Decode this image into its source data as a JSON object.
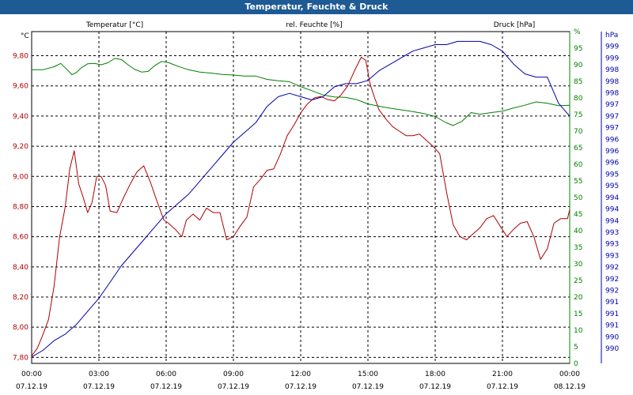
{
  "title": "Temperatur, Feuchte & Druck",
  "colors": {
    "temperature": "#b00000",
    "humidity": "#008000",
    "pressure": "#0000b0",
    "grid": "#000000",
    "titlebar": "#1e5a94"
  },
  "chart_data": {
    "type": "line",
    "grid": true,
    "x_ticks": [
      {
        "time": "00:00",
        "date": "07.12.19"
      },
      {
        "time": "03:00",
        "date": "07.12.19"
      },
      {
        "time": "06:00",
        "date": "07.12.19"
      },
      {
        "time": "09:00",
        "date": "07.12.19"
      },
      {
        "time": "12:00",
        "date": "07.12.19"
      },
      {
        "time": "15:00",
        "date": "07.12.19"
      },
      {
        "time": "18:00",
        "date": "07.12.19"
      },
      {
        "time": "21:00",
        "date": "07.12.19"
      },
      {
        "time": "00:00",
        "date": "08.12.19"
      }
    ],
    "axes": {
      "temperature": {
        "label": "Temperatur [°C]",
        "unit": "°C",
        "ylim": [
          7.76,
          9.96
        ],
        "ticks": [
          "7,80",
          "8,00",
          "8,20",
          "8,40",
          "8,60",
          "8,80",
          "9,00",
          "9,20",
          "9,40",
          "9,60",
          "9,80"
        ]
      },
      "humidity": {
        "label": "rel. Feuchte [%]",
        "unit": "%",
        "ylim": [
          0,
          100
        ],
        "ticks": [
          "0",
          "5",
          "10",
          "15",
          "20",
          "25",
          "30",
          "35",
          "40",
          "45",
          "50",
          "55",
          "60",
          "65",
          "70",
          "75",
          "80",
          "85",
          "90",
          "95",
          "%"
        ]
      },
      "pressure": {
        "label": "Druck [hPa]",
        "unit": "hPa",
        "ylim": [
          989.4,
          999.6
        ],
        "ticks": [
          "990",
          "990",
          "991",
          "991",
          "991",
          "992",
          "992",
          "992",
          "993",
          "993",
          "993",
          "994",
          "994",
          "994",
          "995",
          "995",
          "996",
          "996",
          "996",
          "997",
          "997",
          "997",
          "998",
          "998",
          "998",
          "999",
          "999",
          "hPa"
        ]
      }
    },
    "series": [
      {
        "name": "Temperatur [°C]",
        "axis": "temperature",
        "x": [
          0,
          0.25,
          0.5,
          0.75,
          1,
          1.25,
          1.5,
          1.7,
          1.9,
          2.1,
          2.3,
          2.5,
          2.7,
          2.9,
          3.1,
          3.3,
          3.5,
          3.8,
          4.1,
          4.4,
          4.7,
          5.0,
          5.3,
          5.6,
          5.9,
          6.1,
          6.4,
          6.7,
          6.9,
          7.2,
          7.5,
          7.8,
          8.1,
          8.4,
          8.7,
          9.0,
          9.3,
          9.6,
          9.9,
          10.2,
          10.5,
          10.8,
          11.1,
          11.4,
          11.7,
          12.0,
          12.3,
          12.6,
          12.9,
          13.2,
          13.5,
          13.8,
          14.1,
          14.4,
          14.7,
          14.9,
          15.1,
          15.3,
          15.5,
          15.8,
          16.1,
          16.4,
          16.7,
          17.0,
          17.3,
          17.6,
          17.9,
          18.2,
          18.5,
          18.8,
          19.1,
          19.4,
          19.7,
          20.0,
          20.3,
          20.6,
          20.9,
          21.2,
          21.5,
          21.8,
          22.1,
          22.4,
          22.7,
          23.0,
          23.3,
          23.6,
          23.9,
          24.0
        ],
        "values": [
          7.81,
          7.86,
          7.95,
          8.05,
          8.27,
          8.6,
          8.8,
          9.05,
          9.17,
          8.95,
          8.86,
          8.76,
          8.83,
          9.0,
          9.0,
          8.94,
          8.77,
          8.76,
          8.86,
          8.95,
          9.03,
          9.07,
          8.96,
          8.83,
          8.71,
          8.69,
          8.65,
          8.6,
          8.71,
          8.75,
          8.71,
          8.79,
          8.76,
          8.76,
          8.58,
          8.6,
          8.67,
          8.73,
          8.93,
          8.98,
          9.04,
          9.05,
          9.15,
          9.27,
          9.34,
          9.42,
          9.48,
          9.52,
          9.53,
          9.51,
          9.5,
          9.54,
          9.6,
          9.7,
          9.79,
          9.77,
          9.61,
          9.52,
          9.44,
          9.38,
          9.33,
          9.3,
          9.27,
          9.27,
          9.28,
          9.24,
          9.2,
          9.15,
          8.9,
          8.68,
          8.6,
          8.58,
          8.62,
          8.66,
          8.72,
          8.74,
          8.67,
          8.6,
          8.65,
          8.69,
          8.7,
          8.6,
          8.45,
          8.52,
          8.69,
          8.72,
          8.72,
          8.78
        ]
      },
      {
        "name": "rel. Feuchte [%]",
        "axis": "humidity",
        "x": [
          0,
          0.5,
          1,
          1.3,
          1.6,
          1.8,
          2.0,
          2.2,
          2.5,
          2.8,
          3.1,
          3.4,
          3.7,
          4.0,
          4.3,
          4.6,
          4.9,
          5.2,
          5.5,
          5.8,
          6.1,
          6.5,
          7.0,
          7.5,
          8.0,
          8.5,
          9.0,
          9.5,
          10.0,
          10.5,
          11.0,
          11.5,
          12.0,
          12.5,
          13.0,
          13.5,
          14.0,
          14.5,
          15.0,
          15.5,
          16.0,
          16.5,
          17.0,
          17.5,
          18.0,
          18.5,
          18.8,
          19.2,
          19.6,
          20.0,
          20.5,
          21.0,
          21.5,
          22.0,
          22.5,
          23.0,
          23.5,
          24.0
        ],
        "values": [
          88.5,
          88.5,
          89.4,
          90.4,
          88.4,
          87.0,
          87.7,
          89.0,
          90.3,
          90.4,
          90.0,
          90.6,
          91.9,
          91.6,
          90.0,
          88.6,
          87.8,
          88.0,
          89.8,
          91.0,
          90.7,
          89.6,
          88.5,
          87.8,
          87.5,
          87.1,
          86.9,
          86.6,
          86.6,
          85.6,
          85.2,
          84.9,
          83.4,
          82.2,
          80.9,
          80.3,
          80.2,
          79.5,
          78.2,
          77.5,
          76.9,
          76.4,
          75.9,
          75.3,
          74.4,
          72.5,
          71.7,
          73.0,
          75.6,
          75.1,
          75.6,
          76.0,
          77.0,
          77.8,
          78.8,
          78.4,
          77.7,
          77.8
        ]
      },
      {
        "name": "Druck [hPa]",
        "axis": "pressure",
        "x": [
          0,
          0.5,
          1,
          1.5,
          2,
          2.5,
          3,
          3.5,
          4,
          4.5,
          5,
          5.5,
          6,
          6.5,
          7,
          7.5,
          8,
          8.5,
          9,
          9.5,
          10,
          10.5,
          11,
          11.5,
          12,
          12.5,
          13,
          13.5,
          14,
          14.5,
          15,
          15.5,
          16,
          16.5,
          17,
          17.5,
          18,
          18.5,
          19,
          19.5,
          20,
          20.5,
          21,
          21.5,
          22,
          22.5,
          23,
          23.5,
          24
        ],
        "values": [
          989.6,
          989.8,
          990.1,
          990.3,
          990.6,
          991.0,
          991.4,
          991.9,
          992.4,
          992.8,
          993.2,
          993.6,
          994.0,
          994.3,
          994.6,
          995.0,
          995.4,
          995.8,
          996.2,
          996.5,
          996.8,
          997.3,
          997.6,
          997.7,
          997.6,
          997.5,
          997.6,
          997.9,
          998.0,
          998.0,
          998.1,
          998.4,
          998.6,
          998.8,
          999.0,
          999.1,
          999.2,
          999.2,
          999.3,
          999.3,
          999.3,
          999.2,
          999.0,
          998.6,
          998.3,
          998.2,
          998.2,
          997.4,
          997.0
        ]
      }
    ]
  }
}
